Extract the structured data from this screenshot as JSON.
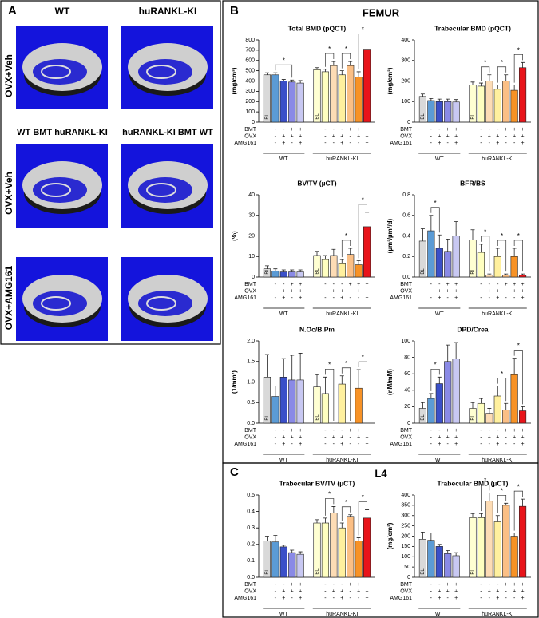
{
  "panel_a": {
    "letter": "A",
    "headers": [
      "WT",
      "huRANKL-KI",
      "WT BMT huRANKL-KI",
      "huRANKL-KI BMT WT"
    ],
    "row_labels": [
      "OVX+Veh",
      "OVX+Veh",
      "OVX+AMG161"
    ]
  },
  "panel_b": {
    "letter": "B",
    "title": "FEMUR"
  },
  "panel_c": {
    "letter": "C",
    "title": "L4"
  },
  "groups": [
    "WT",
    "huRANKL-KI"
  ],
  "baseline_label": "BL",
  "significance_label": "*",
  "bar_colors": [
    "#d9d9d9",
    "#5b9bd5",
    "#3a4fc8",
    "#8a8ae6",
    "#c8c8f2",
    "#ffffd2",
    "#ffffc0",
    "#fddcb5",
    "#fff09e",
    "#fbbf85",
    "#f79226",
    "#e8141a"
  ],
  "treatment_rows": [
    {
      "name": "BMT",
      "signs": [
        "-",
        "-",
        "+",
        "+",
        "-",
        "-",
        "-",
        "+",
        "+",
        "+"
      ]
    },
    {
      "name": "OVX",
      "signs": [
        "-",
        "+",
        "+",
        "+",
        "-",
        "+",
        "+",
        "-",
        "+",
        "+"
      ]
    },
    {
      "name": "AMG161",
      "signs": [
        "-",
        "+",
        "-",
        "+",
        "-",
        "-",
        "+",
        "-",
        "-",
        "+"
      ]
    }
  ],
  "chart_data": [
    {
      "type": "bar",
      "title": "Total BMD (pQCT)",
      "ylabel": "(mg/cm³)",
      "ylim": [
        0,
        800
      ],
      "yticks": [
        0,
        100,
        200,
        300,
        400,
        500,
        600,
        700,
        800
      ],
      "values": [
        460,
        460,
        400,
        390,
        380,
        510,
        490,
        550,
        460,
        550,
        440,
        710
      ],
      "errors": [
        20,
        20,
        15,
        20,
        25,
        20,
        25,
        40,
        40,
        40,
        50,
        70
      ],
      "brackets": [
        [
          1,
          3
        ],
        [
          6,
          7
        ],
        [
          8,
          9
        ],
        [
          10,
          11
        ]
      ]
    },
    {
      "type": "bar",
      "title": "Trabecular BMD (pQCT)",
      "ylabel": "(mg/cm³)",
      "ylim": [
        0,
        400
      ],
      "yticks": [
        0,
        100,
        200,
        300,
        400
      ],
      "values": [
        125,
        105,
        100,
        100,
        98,
        180,
        175,
        200,
        160,
        200,
        155,
        265
      ],
      "errors": [
        12,
        10,
        12,
        12,
        12,
        15,
        15,
        30,
        20,
        30,
        25,
        25
      ],
      "brackets": [
        [
          6,
          7
        ],
        [
          8,
          9
        ],
        [
          10,
          11
        ]
      ]
    },
    {
      "type": "bar",
      "title": "BV/TV (µCT)",
      "ylabel": "(%)",
      "ylim": [
        0,
        40
      ],
      "yticks": [
        0,
        10,
        20,
        30,
        40
      ],
      "values": [
        4,
        3,
        2.5,
        2.5,
        2.5,
        10.5,
        8.5,
        10.5,
        6.5,
        11,
        6,
        24.5
      ],
      "errors": [
        1.5,
        1,
        1,
        1,
        1,
        2,
        2,
        3,
        2,
        3,
        2,
        7
      ],
      "brackets": [
        [
          8,
          9
        ],
        [
          10,
          11
        ]
      ]
    },
    {
      "type": "bar",
      "title": "BFR/BS",
      "ylabel": "(µm³/µm²/d)",
      "ylim": [
        0,
        0.8
      ],
      "yticks": [
        {
          "value": 0,
          "label": "0.0"
        },
        0.2,
        0.4,
        0.6,
        0.8
      ],
      "values": [
        0.35,
        0.45,
        0.28,
        0.25,
        0.4,
        0.36,
        0.24,
        0.02,
        0.2,
        0.02,
        0.2,
        0.02
      ],
      "errors": [
        0.12,
        0.15,
        0.13,
        0.12,
        0.14,
        0.1,
        0.08,
        0.01,
        0.08,
        0.01,
        0.08,
        0.01
      ],
      "brackets": [
        [
          1,
          2
        ],
        [
          6,
          7
        ],
        [
          8,
          9
        ],
        [
          10,
          11
        ]
      ]
    },
    {
      "type": "bar",
      "title": "N.Oc/B.Pm",
      "ylabel": "(1/mm²)",
      "ylim": [
        0,
        2
      ],
      "yticks": [
        {
          "value": 0,
          "label": "0.0"
        },
        0.5,
        {
          "value": 1,
          "label": "1.0"
        },
        1.5,
        {
          "value": 2,
          "label": "2.0"
        }
      ],
      "values": [
        1.12,
        0.65,
        1.12,
        1.05,
        1.05,
        0.88,
        0.72,
        null,
        0.95,
        null,
        0.85,
        null
      ],
      "errors": [
        0.55,
        0.25,
        0.45,
        0.6,
        0.65,
        0.3,
        0.4,
        null,
        0.2,
        null,
        0.45,
        null
      ],
      "brackets": [
        [
          6,
          7
        ],
        [
          8,
          9
        ],
        [
          10,
          11
        ]
      ]
    },
    {
      "type": "bar",
      "title": "DPD/Crea",
      "ylabel": "(nM/mM)",
      "ylim": [
        0,
        100
      ],
      "yticks": [
        0,
        20,
        40,
        60,
        80,
        100
      ],
      "values": [
        18,
        30,
        48,
        75,
        78,
        18,
        24,
        12,
        33,
        16,
        59,
        15
      ],
      "errors": [
        7,
        6,
        8,
        20,
        20,
        7,
        6,
        6,
        12,
        8,
        20,
        5
      ],
      "brackets": [
        [
          1,
          2
        ],
        [
          8,
          9
        ],
        [
          10,
          11
        ]
      ]
    },
    {
      "type": "bar",
      "title": "Trabecular BV/TV (µCT)",
      "ylim": [
        0,
        0.5
      ],
      "yticks": [
        {
          "value": 0,
          "label": "0.0"
        },
        0.1,
        0.2,
        0.3,
        0.4,
        0.5
      ],
      "values": [
        0.22,
        0.215,
        0.185,
        0.15,
        0.14,
        0.33,
        0.33,
        0.39,
        0.3,
        0.37,
        0.22,
        0.36
      ],
      "errors": [
        0.03,
        0.04,
        0.01,
        0.015,
        0.015,
        0.02,
        0.03,
        0.04,
        0.03,
        0.01,
        0.02,
        0.05
      ],
      "brackets": [
        [
          6,
          7
        ],
        [
          8,
          9
        ],
        [
          10,
          11
        ]
      ]
    },
    {
      "type": "bar",
      "title": "Trabecular BMD (µCT)",
      "ylabel": "(mg/cm³)",
      "ylim": [
        0,
        400
      ],
      "yticks": [
        0,
        50,
        100,
        150,
        200,
        250,
        300,
        350,
        400
      ],
      "values": [
        185,
        180,
        150,
        115,
        105,
        290,
        290,
        370,
        270,
        350,
        200,
        345
      ],
      "errors": [
        35,
        35,
        10,
        15,
        15,
        20,
        20,
        40,
        30,
        10,
        15,
        35
      ],
      "brackets": [
        [
          6,
          7
        ],
        [
          8,
          9
        ],
        [
          10,
          11
        ]
      ]
    }
  ]
}
